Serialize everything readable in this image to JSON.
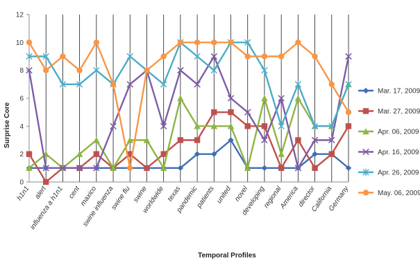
{
  "chart_data": {
    "type": "line",
    "xlabel": "Temporal Profiles",
    "ylabel": "Surprise Core",
    "ylim": [
      0,
      12
    ],
    "yticks": [
      0,
      2,
      4,
      6,
      8,
      10,
      12
    ],
    "grid": "vertical",
    "legend_position": "right",
    "categories": [
      "h1n1",
      "alert",
      "influenza a h1n1",
      "cent",
      "maxico",
      "swine influenza",
      "swine flu",
      "swine",
      "worldwide",
      "texas",
      "pandemic",
      "patients",
      "united",
      "novel",
      "developing",
      "regional",
      "America",
      "director",
      "California",
      "Germany"
    ],
    "series": [
      {
        "name": "Mar. 17, 2009",
        "color": "#3F6DB5",
        "marker": "diamond",
        "values": [
          1,
          1,
          1,
          1,
          1,
          1,
          1,
          1,
          1,
          1,
          2,
          2,
          3,
          1,
          1,
          1,
          1,
          2,
          2,
          1
        ]
      },
      {
        "name": "Mar. 27, 2009",
        "color": "#C0504D",
        "marker": "square",
        "values": [
          2,
          0,
          1,
          1,
          2,
          1,
          2,
          1,
          2,
          3,
          3,
          5,
          5,
          4,
          4,
          1,
          3,
          1,
          2,
          4
        ]
      },
      {
        "name": "Apr. 06, 2009",
        "color": "#8FB443",
        "marker": "triangle",
        "values": [
          1,
          2,
          1,
          2,
          3,
          1,
          3,
          3,
          1,
          6,
          4,
          4,
          4,
          1,
          6,
          2,
          6,
          4,
          4,
          7
        ]
      },
      {
        "name": "Apr. 16, 2009",
        "color": "#7E5DA6",
        "marker": "x",
        "values": [
          8,
          1,
          1,
          1,
          1,
          4,
          7,
          8,
          4,
          8,
          7,
          9,
          6,
          5,
          3,
          6,
          1,
          3,
          3,
          9
        ]
      },
      {
        "name": "Apr. 26, 2009",
        "color": "#4BACC6",
        "marker": "star",
        "values": [
          9,
          9,
          7,
          7,
          8,
          7,
          9,
          8,
          7,
          10,
          9,
          8,
          10,
          10,
          8,
          4,
          7,
          4,
          4,
          7
        ]
      },
      {
        "name": "May. 06, 2009",
        "color": "#F79646",
        "marker": "circle",
        "values": [
          10,
          8,
          9,
          8,
          10,
          7,
          1,
          8,
          9,
          10,
          10,
          10,
          10,
          9,
          9,
          9,
          10,
          9,
          7,
          5
        ]
      }
    ]
  }
}
